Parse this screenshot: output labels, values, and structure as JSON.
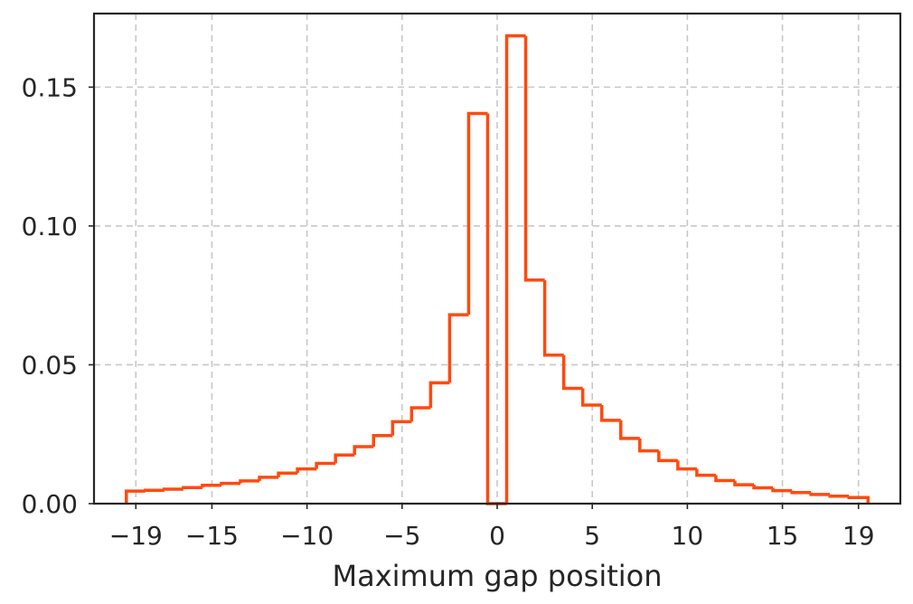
{
  "chart_data": {
    "type": "histogram",
    "title": "",
    "xlabel": "Maximum gap position",
    "ylabel": "",
    "xlim": [
      -21.2,
      21.2
    ],
    "ylim": [
      0,
      0.1765
    ],
    "grid": true,
    "legend": "none",
    "line_color": "#ff4a0f",
    "x_ticks": [
      -19,
      -15,
      -10,
      -5,
      0,
      5,
      10,
      15,
      19
    ],
    "x_tick_labels": [
      "−19",
      "−15",
      "−10",
      "−5",
      "0",
      "5",
      "10",
      "15",
      "19"
    ],
    "y_ticks": [
      0,
      0.05,
      0.1,
      0.15
    ],
    "y_tick_labels": [
      "0.00",
      "0.05",
      "0.10",
      "0.15"
    ],
    "bin_edges": [
      -19.5,
      -18.5,
      -17.5,
      -16.5,
      -15.5,
      -14.5,
      -13.5,
      -12.5,
      -11.5,
      -10.5,
      -9.5,
      -8.5,
      -7.5,
      -6.5,
      -5.5,
      -4.5,
      -3.5,
      -2.5,
      -1.5,
      -0.5,
      0.5,
      1.5,
      2.5,
      3.5,
      4.5,
      5.5,
      6.5,
      7.5,
      8.5,
      9.5,
      10.5,
      11.5,
      12.5,
      13.5,
      14.5,
      15.5,
      16.5,
      17.5,
      18.5,
      19.5
    ],
    "values": [
      0.0045,
      0.0048,
      0.0052,
      0.0058,
      0.0066,
      0.0073,
      0.0082,
      0.0095,
      0.011,
      0.0125,
      0.0145,
      0.0175,
      0.0205,
      0.0245,
      0.0295,
      0.0345,
      0.0435,
      0.068,
      0.1405,
      0.0,
      0.1685,
      0.0805,
      0.0535,
      0.0415,
      0.0355,
      0.03,
      0.0235,
      0.019,
      0.0155,
      0.0125,
      0.0102,
      0.0083,
      0.0068,
      0.0057,
      0.0047,
      0.004,
      0.0033,
      0.0027,
      0.0022
    ]
  }
}
